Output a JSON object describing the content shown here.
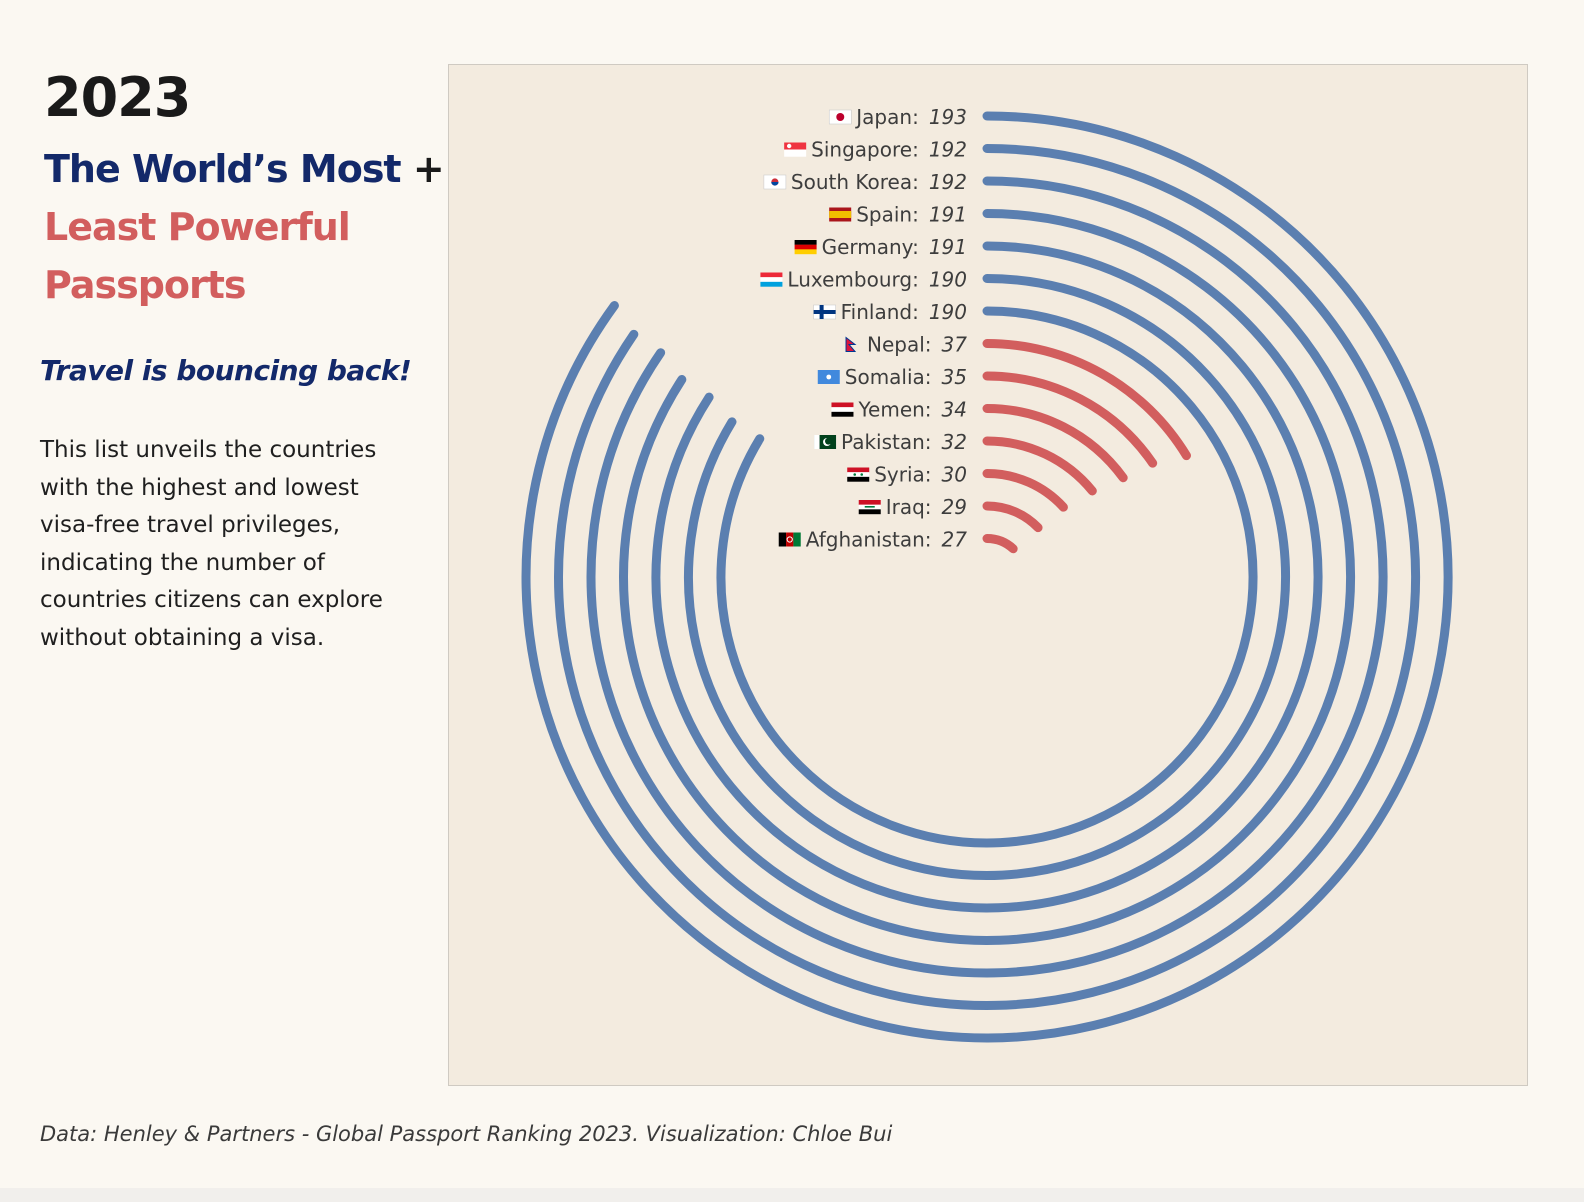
{
  "header": {
    "year": "2023",
    "title_most": "The World’s Most",
    "title_plus": "+",
    "title_least": "Least Powerful Passports",
    "subtitle": "Travel is bouncing back!",
    "description": "This list unveils the countries with the highest and lowest visa-free travel privileges, indicating the number of countries citizens can explore without obtaining a visa."
  },
  "footer": {
    "source": "Data: Henley & Partners - Global Passport Ranking 2023. Visualization: Chloe Bui"
  },
  "colors": {
    "most": "#5b7fb0",
    "least": "#d25e5e",
    "panel": "#f3ebdf"
  },
  "chart_data": {
    "type": "radial-bar",
    "title": "",
    "max_value": 227,
    "series": [
      {
        "name": "Most",
        "color": "#5b7fb0"
      },
      {
        "name": "Least",
        "color": "#d25e5e"
      }
    ],
    "countries": [
      {
        "name": "Japan",
        "value": 193,
        "group": "most",
        "flag": "jp"
      },
      {
        "name": "Singapore",
        "value": 192,
        "group": "most",
        "flag": "sg"
      },
      {
        "name": "South Korea",
        "value": 192,
        "group": "most",
        "flag": "kr"
      },
      {
        "name": "Spain",
        "value": 191,
        "group": "most",
        "flag": "es"
      },
      {
        "name": "Germany",
        "value": 191,
        "group": "most",
        "flag": "de"
      },
      {
        "name": "Luxembourg",
        "value": 190,
        "group": "most",
        "flag": "lu"
      },
      {
        "name": "Finland",
        "value": 190,
        "group": "most",
        "flag": "fi"
      },
      {
        "name": "Nepal",
        "value": 37,
        "group": "least",
        "flag": "np"
      },
      {
        "name": "Somalia",
        "value": 35,
        "group": "least",
        "flag": "so"
      },
      {
        "name": "Yemen",
        "value": 34,
        "group": "least",
        "flag": "ye"
      },
      {
        "name": "Pakistan",
        "value": 32,
        "group": "least",
        "flag": "pk"
      },
      {
        "name": "Syria",
        "value": 30,
        "group": "least",
        "flag": "sy"
      },
      {
        "name": "Iraq",
        "value": 29,
        "group": "least",
        "flag": "iq"
      },
      {
        "name": "Afghanistan",
        "value": 27,
        "group": "least",
        "flag": "af"
      }
    ]
  }
}
